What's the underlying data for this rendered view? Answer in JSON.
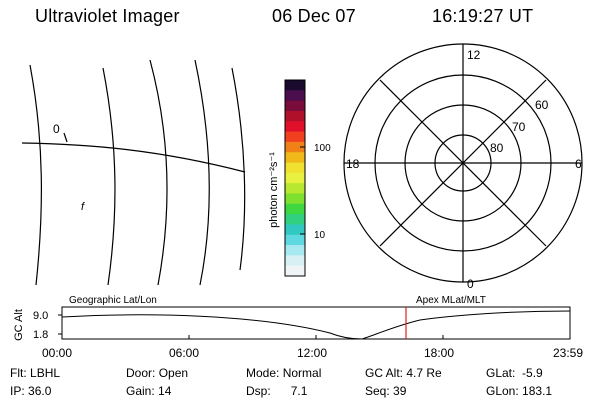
{
  "header": {
    "title": "Ultraviolet Imager",
    "date": "06 Dec 07",
    "time": "16:19:27 UT"
  },
  "colorbar": {
    "label": "photon cm⁻²s⁻¹",
    "ticks": [
      "100",
      "10"
    ],
    "colors_top_to_bottom": [
      "#1a0b2e",
      "#4a0e4e",
      "#7a0c3c",
      "#b0102a",
      "#e0102a",
      "#f04020",
      "#f08018",
      "#f0b818",
      "#f0e030",
      "#e8f040",
      "#b8e830",
      "#80e030",
      "#40d840",
      "#30d080",
      "#30c8c0",
      "#60d8e0",
      "#a8e8f0",
      "#d8f0f4",
      "#f0f4f6"
    ]
  },
  "left_map": {
    "markers": [
      "0",
      "f"
    ]
  },
  "polar": {
    "mlt_labels": {
      "top": "12",
      "left": "18",
      "right": "6",
      "bottom": "0"
    },
    "lat_labels": [
      "60",
      "70",
      "80"
    ]
  },
  "timeline": {
    "y_axis_label": "GC Alt",
    "y_ticks": [
      "9.0",
      "1.8"
    ],
    "left_caption": "Geographic Lat/Lon",
    "right_caption": "Apex MLat/MLT",
    "x_ticks": [
      "00:00",
      "06:00",
      "12:00",
      "18:00",
      "23:59"
    ],
    "current_time_marker_color": "#e02020"
  },
  "status": {
    "row1": [
      {
        "label": "Flt:",
        "value": "LBHL"
      },
      {
        "label": "Door:",
        "value": "Open"
      },
      {
        "label": "Mode:",
        "value": "Normal"
      },
      {
        "label": "GC Alt:",
        "value": "4.7 Re"
      },
      {
        "label": "GLat:",
        "value": "-5.9"
      }
    ],
    "row2": [
      {
        "label": "IP:",
        "value": "36.0"
      },
      {
        "label": "Gain:",
        "value": "14"
      },
      {
        "label": "Dsp:",
        "value": "7.1"
      },
      {
        "label": "Seq:",
        "value": "39"
      },
      {
        "label": "GLon:",
        "value": "183.1"
      }
    ]
  }
}
